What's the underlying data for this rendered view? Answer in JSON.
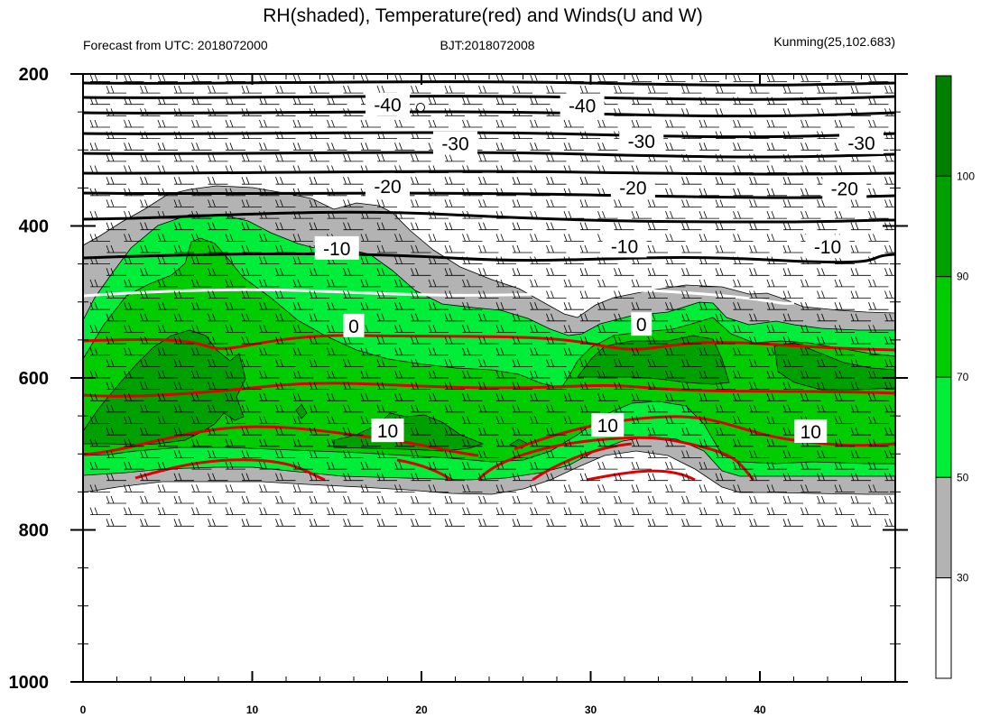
{
  "chart_data": {
    "type": "heatmap",
    "title": "RH(shaded), Temperature(red) and Winds(U and W)",
    "subtitle_left": "Forecast from UTC: 2018072000",
    "subtitle_center": "BJT:2018072008",
    "subtitle_right": "Kunming(25,102.683)",
    "xlim": [
      0,
      48
    ],
    "ylim": [
      1000,
      200
    ],
    "x_ticks": [
      0,
      10,
      20,
      30,
      40
    ],
    "x_tick_labels": [
      "0",
      "10",
      "20",
      "30",
      "40"
    ],
    "y_ticks": [
      200,
      400,
      600,
      800,
      1000
    ],
    "y_tick_labels": [
      "200",
      "400",
      "600",
      "800",
      "1000"
    ],
    "colorbar": {
      "levels": [
        30,
        50,
        70,
        90,
        100
      ],
      "labels": [
        "30",
        "50",
        "70",
        "90",
        "100"
      ],
      "colors": [
        "#ffffff",
        "#b3b3b3",
        "#00ee3a",
        "#00cc00",
        "#00a000",
        "#007f00"
      ]
    },
    "temperature_labels": [
      {
        "text": "-40",
        "x": 18,
        "y": 240
      },
      {
        "text": "-40",
        "x": 29.5,
        "y": 241
      },
      {
        "text": "-30",
        "x": 22,
        "y": 291
      },
      {
        "text": "-30",
        "x": 33,
        "y": 288
      },
      {
        "text": "-30",
        "x": 46,
        "y": 290
      },
      {
        "text": "-20",
        "x": 18,
        "y": 347
      },
      {
        "text": "-20",
        "x": 32.5,
        "y": 349
      },
      {
        "text": "-20",
        "x": 45,
        "y": 350
      },
      {
        "text": "-10",
        "x": 15,
        "y": 429
      },
      {
        "text": "-10",
        "x": 32,
        "y": 426
      },
      {
        "text": "-10",
        "x": 44,
        "y": 427
      },
      {
        "text": "0",
        "x": 16,
        "y": 531
      },
      {
        "text": "0",
        "x": 33,
        "y": 529
      },
      {
        "text": "10",
        "x": 18,
        "y": 669
      },
      {
        "text": "10",
        "x": 31,
        "y": 662
      },
      {
        "text": "10",
        "x": 43,
        "y": 670
      }
    ]
  }
}
